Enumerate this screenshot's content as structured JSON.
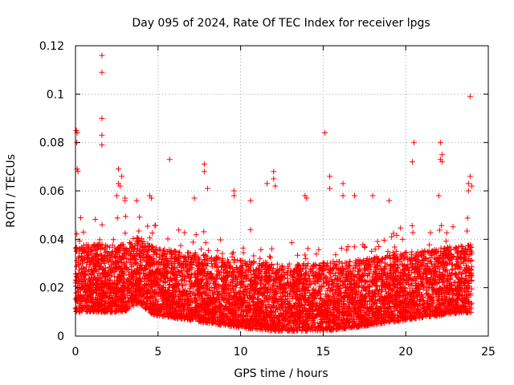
{
  "chart_data": {
    "type": "scatter",
    "title": "Day 095 of 2024, Rate Of TEC Index for receiver lpgs",
    "xlabel": "GPS time / hours",
    "ylabel": "ROTI / TECUs",
    "xlim": [
      0,
      25
    ],
    "ylim": [
      0,
      0.12
    ],
    "xticks": [
      0,
      5,
      10,
      15,
      20,
      25
    ],
    "xtick_labels": [
      "0",
      "5",
      "10",
      "15",
      "20",
      "25"
    ],
    "yticks": [
      0,
      0.02,
      0.04,
      0.06,
      0.08,
      0.1,
      0.12
    ],
    "ytick_labels": [
      "0",
      "0.02",
      "0.04",
      "0.06",
      "0.08",
      "0.1",
      "0.12"
    ],
    "grid": true,
    "marker": "plus",
    "marker_color": "#ff0000",
    "series": [
      {
        "name": "ROTI",
        "sampled_points": true,
        "x_range": [
          0,
          24
        ],
        "bulk_range": [
          0.003,
          0.035
        ],
        "outliers": [
          {
            "x": 0.05,
            "y": 0.085
          },
          {
            "x": 0.1,
            "y": 0.084
          },
          {
            "x": 0.08,
            "y": 0.08
          },
          {
            "x": 0.1,
            "y": 0.069
          },
          {
            "x": 0.15,
            "y": 0.068
          },
          {
            "x": 1.6,
            "y": 0.116
          },
          {
            "x": 1.6,
            "y": 0.109
          },
          {
            "x": 1.6,
            "y": 0.09
          },
          {
            "x": 1.6,
            "y": 0.083
          },
          {
            "x": 1.6,
            "y": 0.079
          },
          {
            "x": 2.6,
            "y": 0.069
          },
          {
            "x": 2.8,
            "y": 0.066
          },
          {
            "x": 2.6,
            "y": 0.063
          },
          {
            "x": 2.7,
            "y": 0.062
          },
          {
            "x": 2.5,
            "y": 0.058
          },
          {
            "x": 3.0,
            "y": 0.057
          },
          {
            "x": 3.0,
            "y": 0.056
          },
          {
            "x": 3.7,
            "y": 0.056
          },
          {
            "x": 4.5,
            "y": 0.058
          },
          {
            "x": 4.6,
            "y": 0.057
          },
          {
            "x": 5.7,
            "y": 0.073
          },
          {
            "x": 7.8,
            "y": 0.071
          },
          {
            "x": 7.8,
            "y": 0.068
          },
          {
            "x": 8.0,
            "y": 0.061
          },
          {
            "x": 7.2,
            "y": 0.057
          },
          {
            "x": 9.6,
            "y": 0.06
          },
          {
            "x": 9.6,
            "y": 0.058
          },
          {
            "x": 10.6,
            "y": 0.056
          },
          {
            "x": 12.0,
            "y": 0.068
          },
          {
            "x": 12.0,
            "y": 0.065
          },
          {
            "x": 11.6,
            "y": 0.063
          },
          {
            "x": 12.1,
            "y": 0.062
          },
          {
            "x": 13.9,
            "y": 0.058
          },
          {
            "x": 14.0,
            "y": 0.057
          },
          {
            "x": 15.1,
            "y": 0.084
          },
          {
            "x": 15.4,
            "y": 0.066
          },
          {
            "x": 15.4,
            "y": 0.061
          },
          {
            "x": 16.2,
            "y": 0.063
          },
          {
            "x": 16.2,
            "y": 0.058
          },
          {
            "x": 16.9,
            "y": 0.058
          },
          {
            "x": 18.0,
            "y": 0.058
          },
          {
            "x": 19.0,
            "y": 0.056
          },
          {
            "x": 20.5,
            "y": 0.08
          },
          {
            "x": 20.4,
            "y": 0.072
          },
          {
            "x": 22.1,
            "y": 0.08
          },
          {
            "x": 22.2,
            "y": 0.075
          },
          {
            "x": 22.1,
            "y": 0.073
          },
          {
            "x": 22.2,
            "y": 0.072
          },
          {
            "x": 22.0,
            "y": 0.058
          },
          {
            "x": 23.9,
            "y": 0.099
          },
          {
            "x": 23.9,
            "y": 0.066
          },
          {
            "x": 23.8,
            "y": 0.063
          },
          {
            "x": 24.0,
            "y": 0.062
          },
          {
            "x": 23.8,
            "y": 0.06
          }
        ]
      }
    ]
  }
}
